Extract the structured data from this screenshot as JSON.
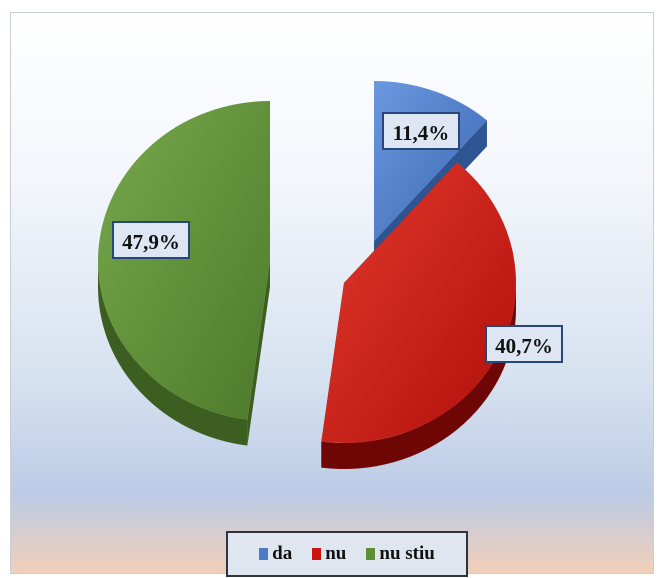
{
  "chart_data": {
    "type": "pie",
    "title": "",
    "slices": [
      {
        "label": "da",
        "value": 11.4,
        "value_label": "11,4%",
        "color": "#4a7ac8",
        "side_color": "#2e5491"
      },
      {
        "label": "nu",
        "value": 40.7,
        "value_label": "40,7%",
        "color": "#c8160f",
        "side_color": "#6e0606"
      },
      {
        "label": "nu stiu",
        "value": 47.9,
        "value_label": "47,9%",
        "color": "#5e8f35",
        "side_color": "#3c5e20"
      }
    ],
    "legend_position": "bottom",
    "style": "3d-exploded"
  }
}
